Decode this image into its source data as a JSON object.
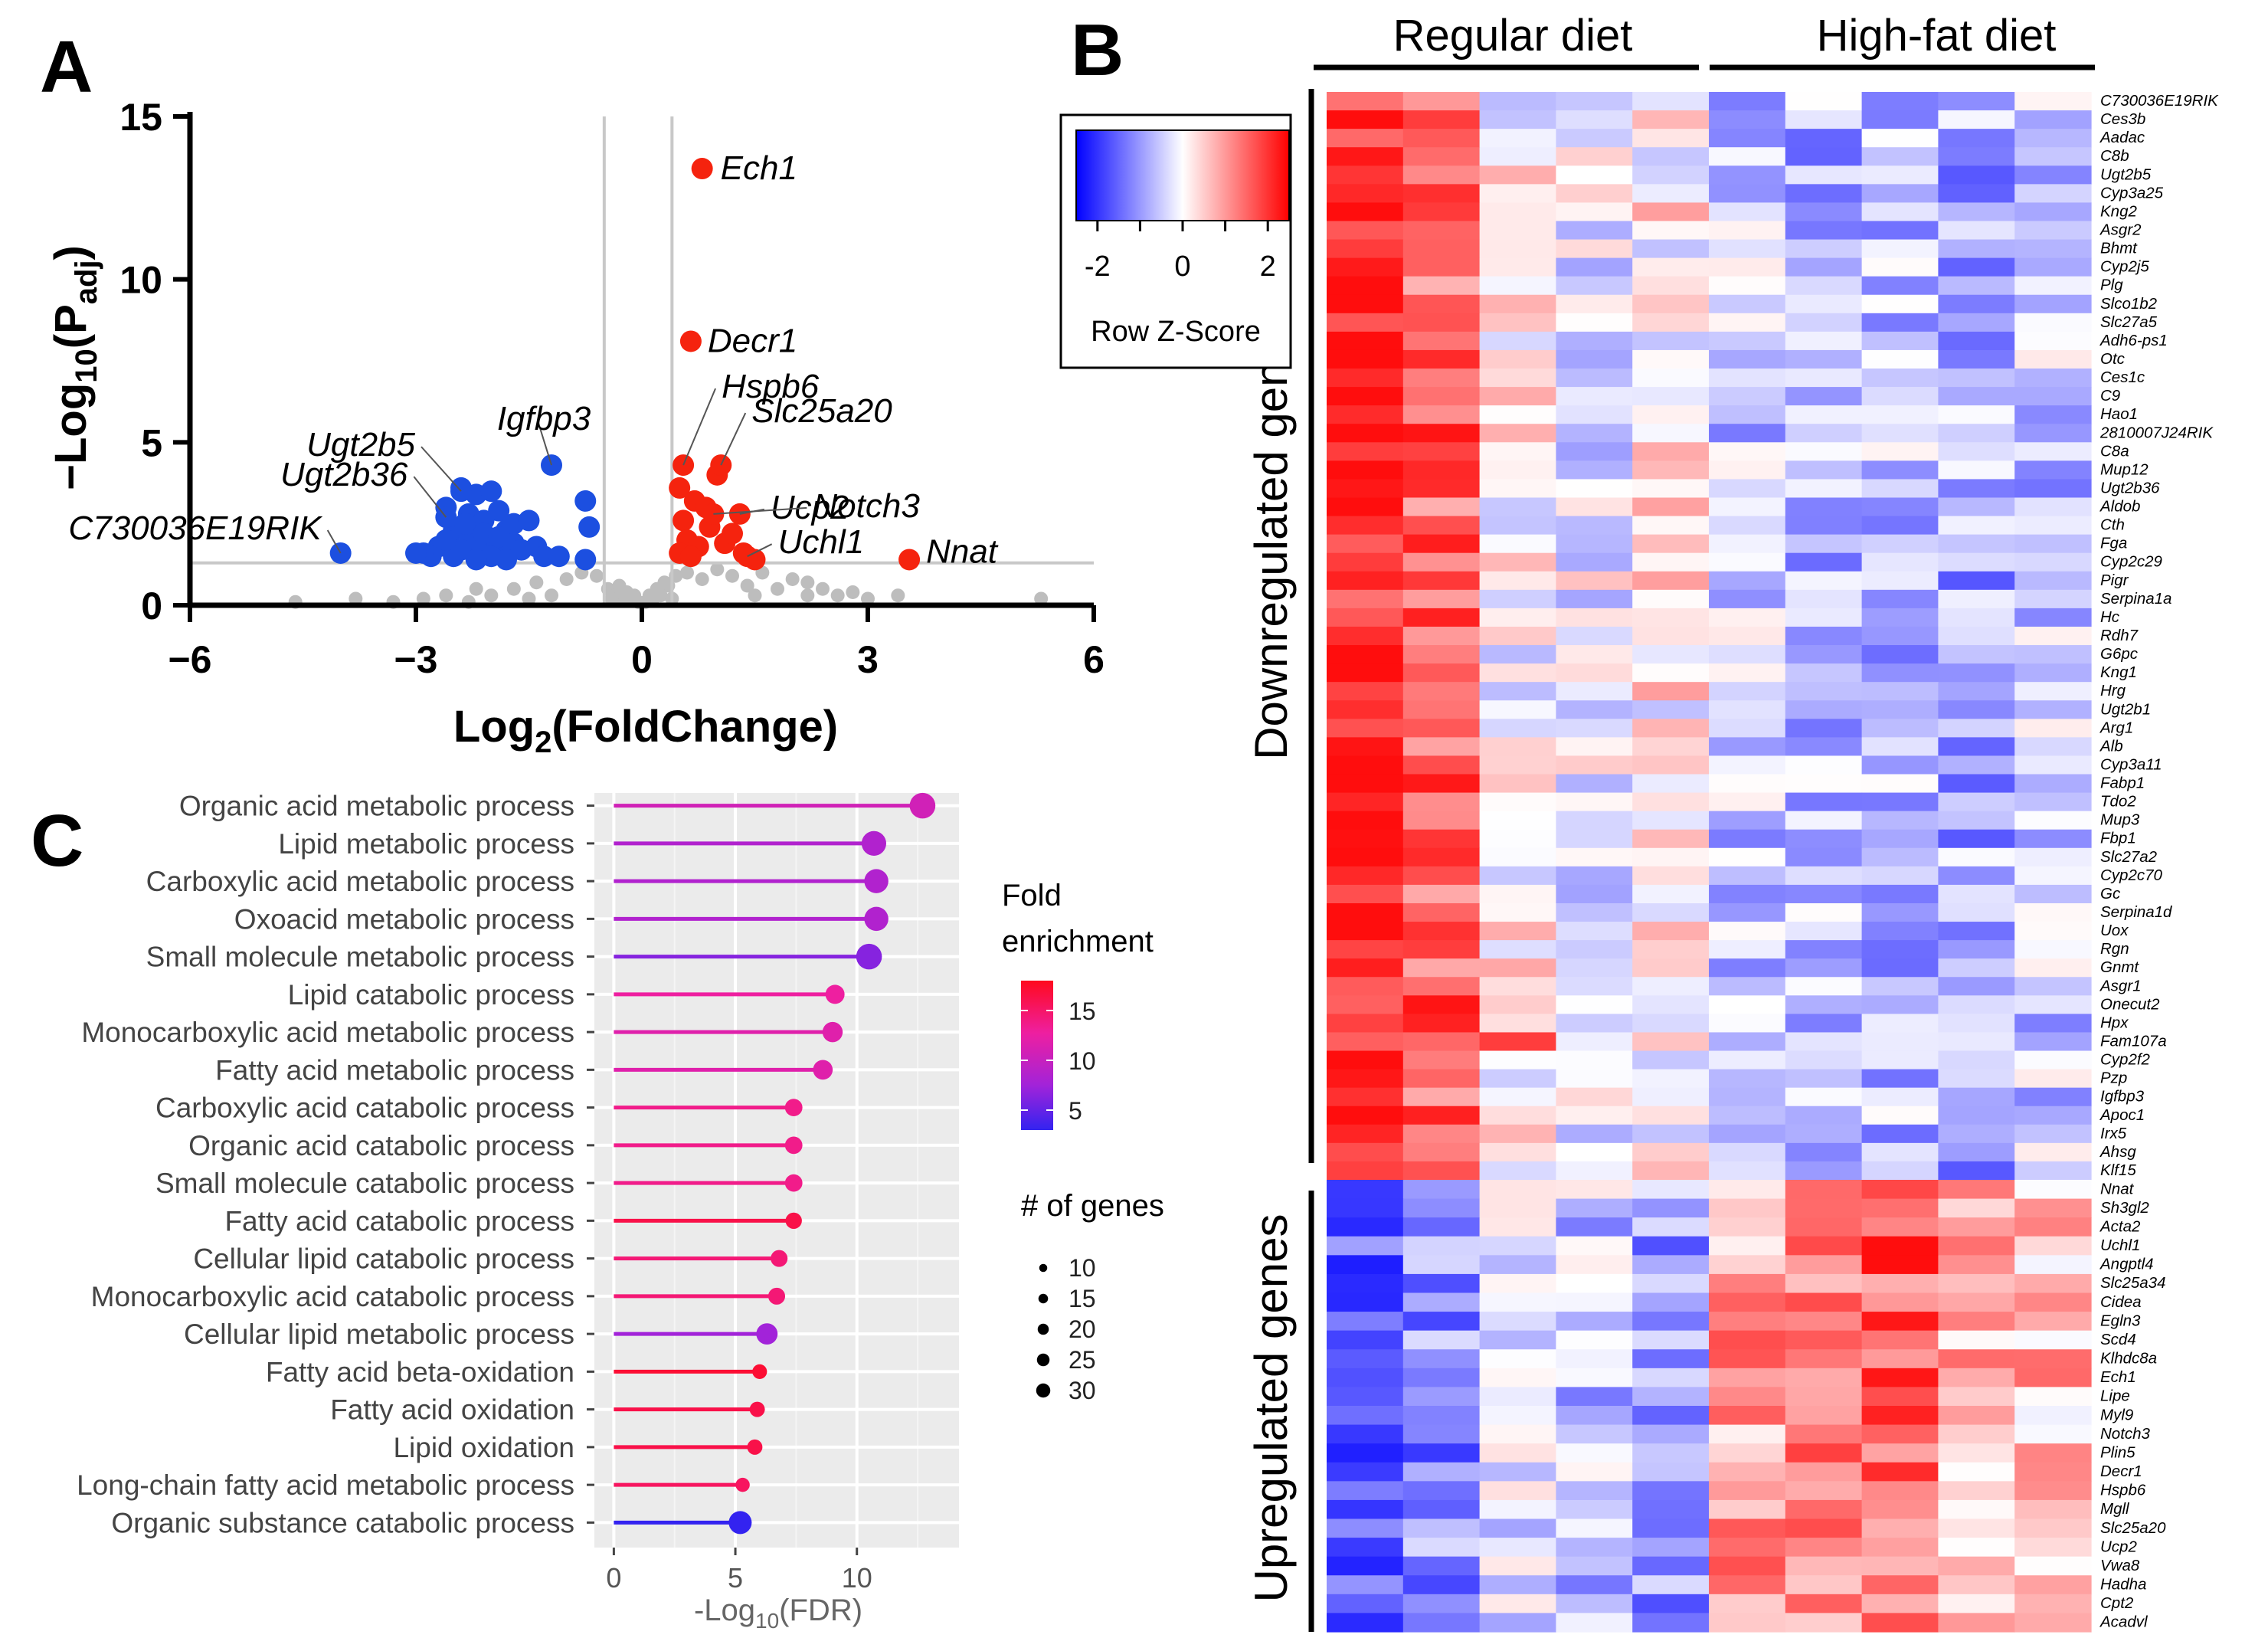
{
  "panels": {
    "a": "A",
    "b": "B",
    "c": "C"
  },
  "colors": {
    "up": "#f5230e",
    "down": "#1c4fe0",
    "ns": "#bdbdbd",
    "heat_high": "#ff0000",
    "heat_mid": "#ffffff",
    "heat_low": "#0000ff"
  },
  "chart_data": [
    {
      "type": "scatter",
      "panel": "A",
      "title": "",
      "xlabel": "Log",
      "xlabel_sub": "2",
      "xlabel_rest": "(FoldChange)",
      "ylabel": "−Log",
      "ylabel_sub1": "10",
      "ylabel_mid": "(P",
      "ylabel_sub2": "adj",
      "ylabel_end": ")",
      "xlim": [
        -6,
        6
      ],
      "ylim": [
        0,
        15
      ],
      "xticks": [
        -6,
        -3,
        0,
        3,
        6
      ],
      "xtick_labels": [
        "−6",
        "−3",
        "0",
        "3",
        "6"
      ],
      "yticks": [
        0,
        5,
        10,
        15
      ],
      "ytick_labels": [
        "0",
        "5",
        "10",
        "15"
      ],
      "thresholds": {
        "x": [
          -0.5,
          0.4
        ],
        "y": 1.3
      },
      "labeled_points": [
        {
          "gene": "Ech1",
          "x": 0.8,
          "y": 13.4,
          "group": "up"
        },
        {
          "gene": "Decr1",
          "x": 0.65,
          "y": 8.1,
          "group": "up"
        },
        {
          "gene": "Hspb6",
          "x": 0.55,
          "y": 4.3,
          "group": "up"
        },
        {
          "gene": "Slc25a20",
          "x": 1.05,
          "y": 4.3,
          "group": "up"
        },
        {
          "gene": "Ucp2",
          "x": 1.3,
          "y": 2.8,
          "group": "up"
        },
        {
          "gene": "Notch3",
          "x": 0.95,
          "y": 2.8,
          "group": "up"
        },
        {
          "gene": "Uchl1",
          "x": 1.4,
          "y": 1.5,
          "group": "up"
        },
        {
          "gene": "Nnat",
          "x": 3.55,
          "y": 1.4,
          "group": "up"
        },
        {
          "gene": "Igfbp3",
          "x": -1.2,
          "y": 4.3,
          "group": "down"
        },
        {
          "gene": "Ugt2b5",
          "x": -2.4,
          "y": 3.5,
          "group": "down"
        },
        {
          "gene": "Ugt2b36",
          "x": -2.6,
          "y": 2.7,
          "group": "down"
        },
        {
          "gene": "C730036E19RIK",
          "x": -4.0,
          "y": 1.6,
          "group": "down"
        }
      ],
      "up_points": [
        [
          0.5,
          3.6
        ],
        [
          0.7,
          3.2
        ],
        [
          0.55,
          2.6
        ],
        [
          0.9,
          2.4
        ],
        [
          0.6,
          2.0
        ],
        [
          0.75,
          1.8
        ],
        [
          1.1,
          1.9
        ],
        [
          1.2,
          2.2
        ],
        [
          0.5,
          1.6
        ],
        [
          1.35,
          1.6
        ],
        [
          1.0,
          4.0
        ],
        [
          0.85,
          3.0
        ],
        [
          0.65,
          1.5
        ],
        [
          1.5,
          1.4
        ]
      ],
      "down_points": [
        [
          -2.4,
          3.6
        ],
        [
          -2.2,
          3.4
        ],
        [
          -2.0,
          3.5
        ],
        [
          -2.6,
          3.0
        ],
        [
          -2.3,
          2.8
        ],
        [
          -2.1,
          2.6
        ],
        [
          -1.9,
          2.9
        ],
        [
          -2.5,
          2.3
        ],
        [
          -2.3,
          2.2
        ],
        [
          -2.0,
          2.0
        ],
        [
          -1.8,
          2.3
        ],
        [
          -2.2,
          1.9
        ],
        [
          -2.7,
          1.8
        ],
        [
          -2.4,
          1.7
        ],
        [
          -1.9,
          1.6
        ],
        [
          -1.7,
          1.9
        ],
        [
          -2.0,
          1.5
        ],
        [
          -2.8,
          1.5
        ],
        [
          -2.5,
          1.5
        ],
        [
          -1.6,
          1.7
        ],
        [
          -1.4,
          1.8
        ],
        [
          -1.3,
          1.5
        ],
        [
          -1.1,
          1.5
        ],
        [
          -2.9,
          1.6
        ],
        [
          -3.0,
          1.6
        ],
        [
          -2.2,
          1.4
        ],
        [
          -1.8,
          1.4
        ],
        [
          -2.6,
          2.0
        ],
        [
          -1.7,
          2.5
        ],
        [
          -1.5,
          2.6
        ],
        [
          -0.75,
          3.2
        ],
        [
          -0.7,
          2.4
        ],
        [
          -0.75,
          1.4
        ],
        [
          -2.1,
          2.2
        ],
        [
          -1.9,
          2.1
        ],
        [
          -2.35,
          2.5
        ]
      ],
      "ns_points": [
        [
          -3.3,
          0.1
        ],
        [
          -2.9,
          0.2
        ],
        [
          -2.6,
          0.3
        ],
        [
          -2.3,
          0.1
        ],
        [
          -2.0,
          0.3
        ],
        [
          -1.7,
          0.5
        ],
        [
          -1.4,
          0.7
        ],
        [
          -1.2,
          0.3
        ],
        [
          -1.0,
          0.8
        ],
        [
          -0.8,
          1.0
        ],
        [
          -0.6,
          0.9
        ],
        [
          -0.45,
          0.5
        ],
        [
          -0.35,
          0.3
        ],
        [
          -0.25,
          0.2
        ],
        [
          -0.15,
          0.15
        ],
        [
          -0.05,
          0.1
        ],
        [
          0.05,
          0.1
        ],
        [
          0.15,
          0.2
        ],
        [
          0.25,
          0.3
        ],
        [
          0.35,
          0.6
        ],
        [
          0.45,
          0.9
        ],
        [
          0.6,
          1.0
        ],
        [
          0.8,
          0.8
        ],
        [
          1.0,
          1.1
        ],
        [
          1.2,
          0.9
        ],
        [
          1.4,
          0.6
        ],
        [
          1.6,
          1.0
        ],
        [
          1.8,
          0.5
        ],
        [
          2.0,
          0.8
        ],
        [
          2.2,
          0.7
        ],
        [
          2.4,
          0.5
        ],
        [
          2.6,
          0.3
        ],
        [
          2.8,
          0.4
        ],
        [
          3.0,
          0.2
        ],
        [
          3.4,
          0.3
        ],
        [
          -4.6,
          0.1
        ],
        [
          -3.8,
          0.2
        ],
        [
          -0.2,
          0.4
        ],
        [
          0.2,
          0.5
        ],
        [
          -0.3,
          0.6
        ],
        [
          0.3,
          0.7
        ],
        [
          -0.1,
          0.3
        ],
        [
          0.1,
          0.3
        ],
        [
          5.3,
          0.2
        ],
        [
          -0.4,
          0.2
        ],
        [
          0.4,
          0.2
        ],
        [
          1.5,
          0.3
        ],
        [
          -1.5,
          0.2
        ],
        [
          -2.2,
          0.5
        ],
        [
          2.2,
          0.3
        ]
      ]
    },
    {
      "type": "heatmap",
      "panel": "B",
      "group_labels": [
        "Regular diet",
        "High-fat diet"
      ],
      "legend_title": "Row Z-Score",
      "legend_ticks": [
        "-2",
        "0",
        "2"
      ],
      "side_labels": [
        "Downregulated genes",
        "Upregulated genes"
      ],
      "zlim": [
        -2.5,
        2.5
      ],
      "rows": [
        "C730036E19RIK",
        "Ces3b",
        "Aadac",
        "C8b",
        "Ugt2b5",
        "Cyp3a25",
        "Kng2",
        "Asgr2",
        "Bhmt",
        "Cyp2j5",
        "Plg",
        "Slco1b2",
        "Slc27a5",
        "Adh6-ps1",
        "Otc",
        "Ces1c",
        "C9",
        "Hao1",
        "2810007J24RIK",
        "C8a",
        "Mup12",
        "Ugt2b36",
        "Aldob",
        "Cth",
        "Fga",
        "Cyp2c29",
        "Pigr",
        "Serpina1a",
        "Hc",
        "Rdh7",
        "G6pc",
        "Kng1",
        "Hrg",
        "Ugt2b1",
        "Arg1",
        "Alb",
        "Cyp3a11",
        "Fabp1",
        "Tdo2",
        "Mup3",
        "Fbp1",
        "Slc27a2",
        "Cyp2c70",
        "Gc",
        "Serpina1d",
        "Uox",
        "Rgn",
        "Gnmt",
        "Asgr1",
        "Onecut2",
        "Hpx",
        "Fam107a",
        "Cyp2f2",
        "Pzp",
        "Igfbp3",
        "Apoc1",
        "Irx5",
        "Ahsg",
        "Klf15",
        "Nnat",
        "Sh3gl2",
        "Acta2",
        "Uchl1",
        "Angptl4",
        "Slc25a34",
        "Cidea",
        "Egln3",
        "Scd4",
        "Klhdc8a",
        "Ech1",
        "Lipe",
        "Myl9",
        "Notch3",
        "Plin5",
        "Decr1",
        "Hspb6",
        "Mgll",
        "Slc25a20",
        "Ucp2",
        "Vwa8",
        "Hadha",
        "Cpt2",
        "Acadvl"
      ],
      "down_count": 59,
      "up_count": 24,
      "down_mean": [
        2.3,
        1.6,
        0.1,
        -0.2,
        0.2,
        -0.6,
        -0.8,
        -0.7,
        -0.9,
        -0.6
      ],
      "up_mean": [
        -1.5,
        -1.2,
        -0.4,
        -0.6,
        -1.0,
        1.0,
        1.3,
        1.6,
        0.8,
        0.7
      ]
    },
    {
      "type": "lollipop",
      "panel": "C",
      "xlabel": "-Log",
      "xlabel_sub": "10",
      "xlabel_end": "(FDR)",
      "xlim": [
        -0.8,
        14.2
      ],
      "xticks": [
        0,
        5,
        10
      ],
      "xtick_labels": [
        "0",
        "5",
        "10"
      ],
      "categories": [
        "Organic acid metabolic process",
        "Lipid metabolic process",
        "Carboxylic acid metabolic process",
        "Oxoacid metabolic process",
        "Small molecule metabolic process",
        "Lipid catabolic process",
        "Monocarboxylic acid metabolic process",
        "Fatty acid metabolic process",
        "Carboxylic acid catabolic process",
        "Organic acid catabolic process",
        "Small molecule catabolic process",
        "Fatty acid catabolic process",
        "Cellular lipid catabolic process",
        "Monocarboxylic acid catabolic process",
        "Cellular lipid metabolic process",
        "Fatty acid beta-oxidation",
        "Fatty acid oxidation",
        "Lipid oxidation",
        "Long-chain fatty acid metabolic process",
        "Organic substance catabolic process"
      ],
      "values": [
        12.7,
        10.7,
        10.8,
        10.8,
        10.5,
        9.1,
        9.0,
        8.6,
        7.4,
        7.4,
        7.4,
        7.4,
        6.8,
        6.7,
        6.3,
        6.0,
        5.9,
        5.8,
        5.3,
        5.2
      ],
      "fold_enrichment": [
        10,
        8,
        8,
        8,
        6,
        12,
        11,
        11,
        13,
        13,
        13,
        16,
        14,
        14,
        7,
        17,
        16,
        16,
        15,
        3
      ],
      "gene_counts": [
        30,
        28,
        27,
        27,
        30,
        18,
        20,
        19,
        15,
        15,
        15,
        13,
        14,
        14,
        22,
        10,
        11,
        11,
        9,
        25
      ],
      "legend_color_title": [
        "Fold",
        "enrichment"
      ],
      "legend_color_ticks": [
        "15",
        "10",
        "5"
      ],
      "legend_color_values": [
        15,
        10,
        5
      ],
      "legend_color_range": [
        3,
        18
      ],
      "legend_size_title": "# of genes",
      "legend_size_labels": [
        "10",
        "15",
        "20",
        "25",
        "30"
      ],
      "legend_size_values": [
        10,
        15,
        20,
        25,
        30
      ]
    }
  ]
}
